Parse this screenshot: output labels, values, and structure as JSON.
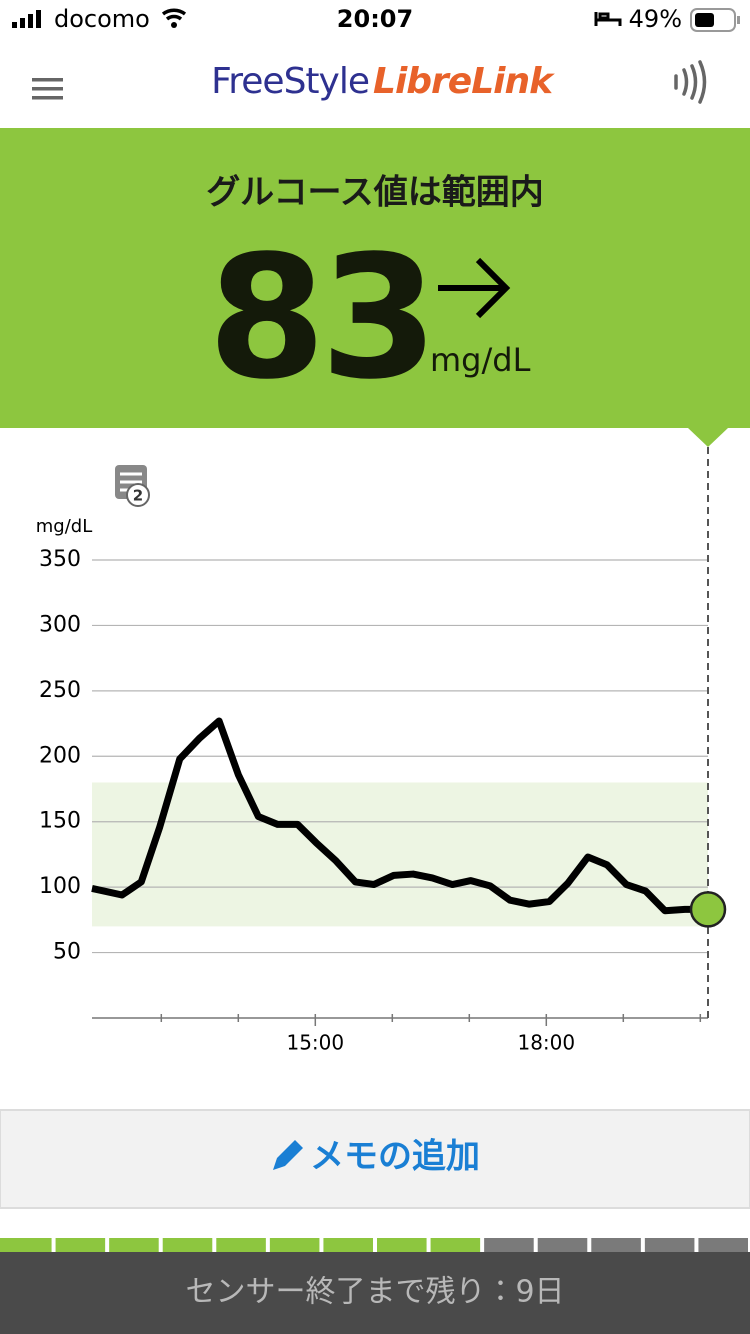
{
  "status_bar": {
    "carrier": "docomo",
    "time": "20:07",
    "battery": "49%"
  },
  "header": {
    "logo_part1": "FreeStyle",
    "logo_part2": "LibreLink"
  },
  "glucose": {
    "status": "グルコース値は範囲内",
    "value": "83",
    "unit": "mg/dL"
  },
  "chart_data": {
    "type": "line",
    "y_label": "mg/dL",
    "note_badge": "2",
    "x": [
      12.1,
      12.49,
      12.74,
      12.98,
      13.24,
      13.5,
      13.75,
      14.0,
      14.26,
      14.51,
      14.77,
      15.01,
      15.27,
      15.52,
      15.76,
      16.02,
      16.27,
      16.52,
      16.78,
      17.02,
      17.27,
      17.53,
      17.78,
      18.04,
      18.28,
      18.54,
      18.79,
      19.04,
      19.29,
      19.54,
      19.8,
      20.1
    ],
    "series": [
      {
        "color": "#000000",
        "values": [
          99,
          94,
          104,
          146,
          198,
          214,
          227,
          186,
          154,
          148,
          148,
          134,
          120,
          104,
          102,
          109,
          110,
          107,
          102,
          105,
          101,
          90,
          87,
          89,
          103,
          123,
          117,
          102,
          97,
          82,
          83,
          83
        ]
      }
    ],
    "current_color": "#8dc63f",
    "xlim": [
      12.1,
      20.1
    ],
    "ylim": [
      0,
      350
    ],
    "yticks": [
      50,
      100,
      150,
      200,
      250,
      300,
      350
    ],
    "xticks": [
      {
        "value": 15,
        "label": "15:00"
      },
      {
        "value": 18,
        "label": "18:00"
      }
    ],
    "minor_xticks": [
      13,
      14,
      16,
      17,
      19,
      20
    ],
    "target_range": [
      70,
      180
    ],
    "target_color": "#edf5e3",
    "grid": true
  },
  "memo_button": "メモの追加",
  "sensor": {
    "text": "センサー終了まで残り：9日",
    "segments": 14,
    "filled": 9
  }
}
